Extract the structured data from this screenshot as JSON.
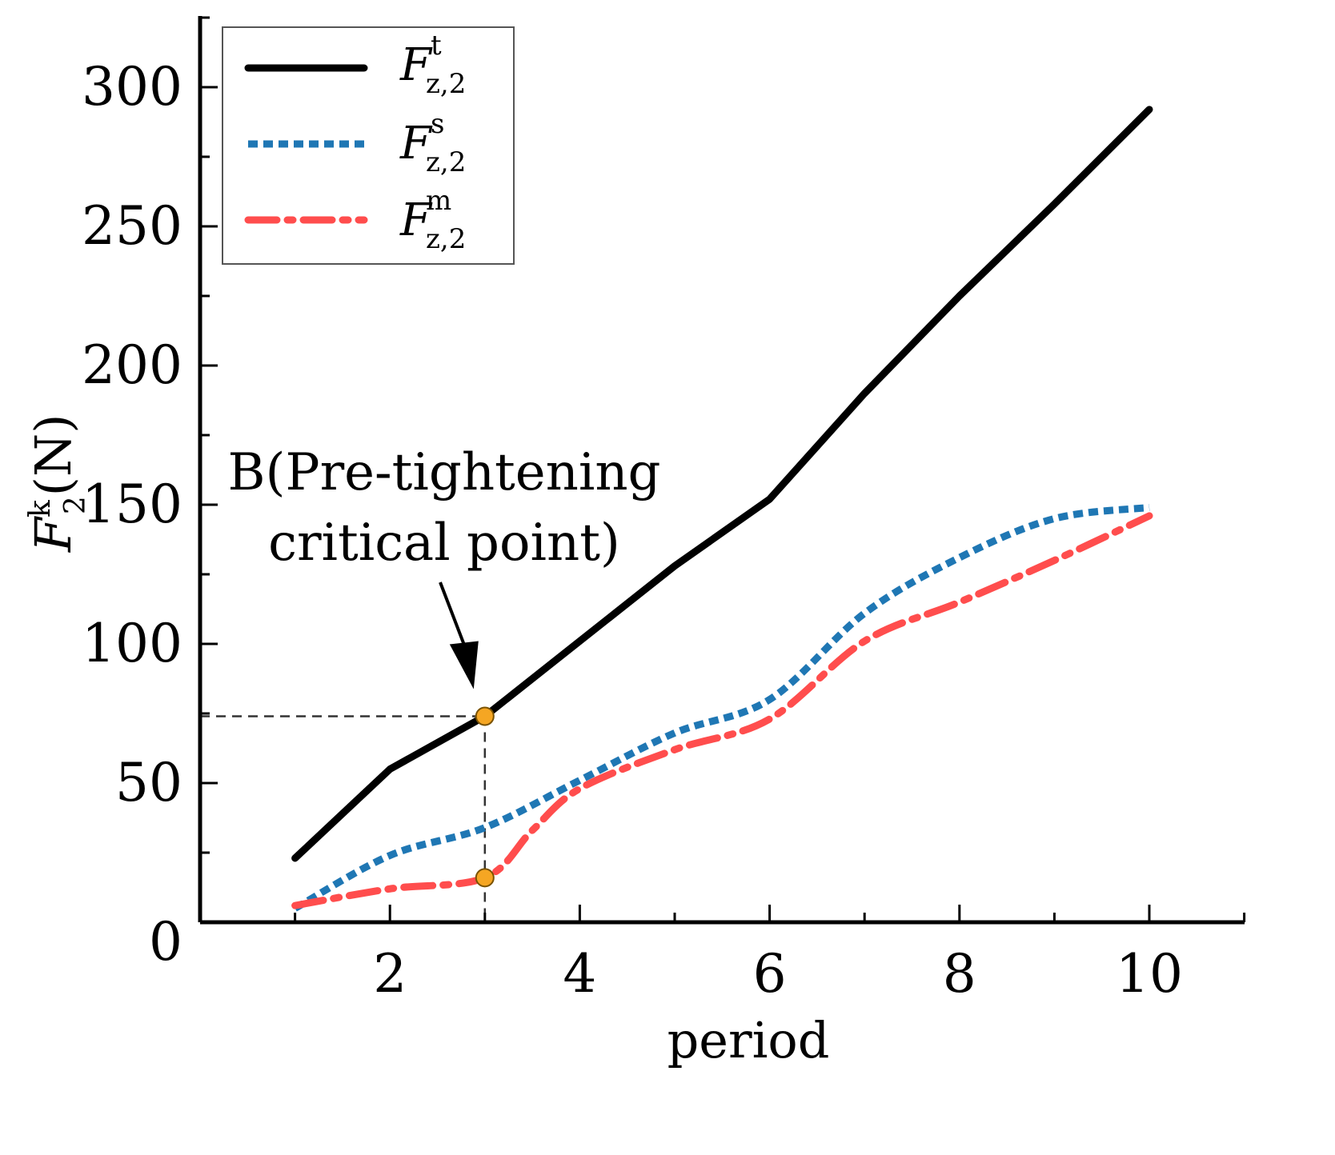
{
  "chart_data": {
    "type": "line",
    "title": "",
    "xlabel": "period",
    "ylabel": "F_2^k(N)",
    "ylabel_parts": {
      "sym": "F",
      "sub": "2",
      "sup": "k",
      "unit": "(N)"
    },
    "xlim": [
      0,
      11
    ],
    "ylim": [
      0,
      325
    ],
    "x_ticks": [
      2,
      4,
      6,
      8,
      10
    ],
    "y_ticks": [
      0,
      50,
      100,
      150,
      200,
      250,
      300
    ],
    "x_tick_labels": [
      "2",
      "4",
      "6",
      "8",
      "10"
    ],
    "y_tick_labels": [
      "0",
      "50",
      "100",
      "150",
      "200",
      "250",
      "300"
    ],
    "x_minor_step": 1,
    "y_minor_step": 25,
    "grid": false,
    "legend_position": "top-left",
    "series": [
      {
        "name": "F_z,2^t",
        "sym": "F",
        "sub": "z,2",
        "sup": "t",
        "color": "#000000",
        "style": "solid",
        "x": [
          1,
          2,
          3,
          4,
          5,
          6,
          7,
          8,
          9,
          10
        ],
        "values": [
          23,
          55,
          74,
          101,
          128,
          152,
          190,
          225,
          258,
          292
        ]
      },
      {
        "name": "F_z,2^s",
        "sym": "F",
        "sub": "z,2",
        "sup": "s",
        "color": "#1f77b4",
        "style": "dotted",
        "x": [
          1,
          2,
          3,
          4,
          5,
          6,
          7,
          8,
          9,
          10
        ],
        "values": [
          5,
          24,
          34,
          51,
          68,
          80,
          111,
          131,
          145,
          149
        ]
      },
      {
        "name": "F_z,2^m",
        "sym": "F",
        "sub": "z,2",
        "sup": "m",
        "color": "#ff4d4d",
        "style": "dashdot",
        "x": [
          1,
          2,
          3,
          3.5,
          4,
          5,
          6,
          7,
          8,
          9,
          10
        ],
        "values": [
          6,
          12,
          16,
          33,
          48,
          62,
          73,
          101,
          115,
          130,
          146
        ]
      }
    ],
    "annotations": [
      {
        "name": "pre-tightening-critical-point",
        "lines": [
          "B(Pre-tightening",
          "critical point)"
        ],
        "x": 3,
        "y": 74,
        "marker_color": "#f5a623"
      }
    ],
    "markers": [
      {
        "x": 3,
        "y": 74,
        "color": "#f5a623"
      },
      {
        "x": 3,
        "y": 16,
        "color": "#f5a623"
      }
    ]
  }
}
